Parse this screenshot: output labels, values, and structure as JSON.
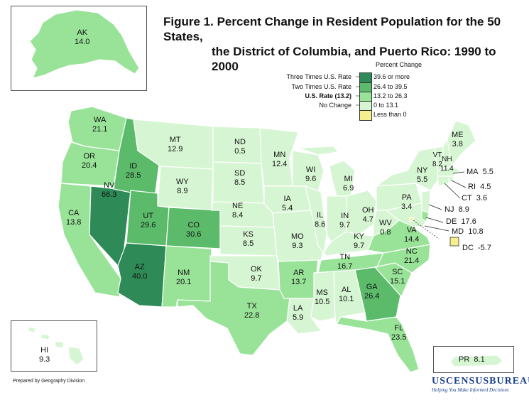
{
  "title": {
    "line1": "Figure 1.  Percent Change in Resident Population for the 50 States,",
    "line2": "the District of Columbia, and Puerto Rico: 1990 to 2000"
  },
  "legend": {
    "heading": "Percent Change",
    "classes": [
      {
        "range": "39.6 or more",
        "color": "#2e8b57",
        "reference": "Three Times U.S. Rate"
      },
      {
        "range": "26.4 to 39.5",
        "color": "#5cbb6a",
        "reference": "Two Times U.S. Rate"
      },
      {
        "range": "13.2 to 26.3",
        "color": "#98e398",
        "reference": "U.S. Rate (13.2)"
      },
      {
        "range": "0 to 13.1",
        "color": "#d6f5d2",
        "reference": "No Change"
      },
      {
        "range": "Less than 0",
        "color": "#f5f08f",
        "reference": ""
      }
    ]
  },
  "states": [
    {
      "abbr": "AK",
      "value": "14.0"
    },
    {
      "abbr": "WA",
      "value": "21.1"
    },
    {
      "abbr": "OR",
      "value": "20.4"
    },
    {
      "abbr": "CA",
      "value": "13.8"
    },
    {
      "abbr": "NV",
      "value": "66.3"
    },
    {
      "abbr": "ID",
      "value": "28.5"
    },
    {
      "abbr": "MT",
      "value": "12.9"
    },
    {
      "abbr": "WY",
      "value": "8.9"
    },
    {
      "abbr": "UT",
      "value": "29.6"
    },
    {
      "abbr": "CO",
      "value": "30.6"
    },
    {
      "abbr": "AZ",
      "value": "40.0"
    },
    {
      "abbr": "NM",
      "value": "20.1"
    },
    {
      "abbr": "ND",
      "value": "0.5"
    },
    {
      "abbr": "SD",
      "value": "8.5"
    },
    {
      "abbr": "NE",
      "value": "8.4"
    },
    {
      "abbr": "KS",
      "value": "8.5"
    },
    {
      "abbr": "OK",
      "value": "9.7"
    },
    {
      "abbr": "TX",
      "value": "22.8"
    },
    {
      "abbr": "MN",
      "value": "12.4"
    },
    {
      "abbr": "IA",
      "value": "5.4"
    },
    {
      "abbr": "MO",
      "value": "9.3"
    },
    {
      "abbr": "AR",
      "value": "13.7"
    },
    {
      "abbr": "LA",
      "value": "5.9"
    },
    {
      "abbr": "WI",
      "value": "9.6"
    },
    {
      "abbr": "IL",
      "value": "8.6"
    },
    {
      "abbr": "MI",
      "value": "6.9"
    },
    {
      "abbr": "IN",
      "value": "9.7"
    },
    {
      "abbr": "OH",
      "value": "4.7"
    },
    {
      "abbr": "KY",
      "value": "9.7"
    },
    {
      "abbr": "TN",
      "value": "16.7"
    },
    {
      "abbr": "MS",
      "value": "10.5"
    },
    {
      "abbr": "AL",
      "value": "10.1"
    },
    {
      "abbr": "GA",
      "value": "26.4"
    },
    {
      "abbr": "FL",
      "value": "23.5"
    },
    {
      "abbr": "SC",
      "value": "15.1"
    },
    {
      "abbr": "NC",
      "value": "21.4"
    },
    {
      "abbr": "VA",
      "value": "14.4"
    },
    {
      "abbr": "WV",
      "value": "0.8"
    },
    {
      "abbr": "PA",
      "value": "3.4"
    },
    {
      "abbr": "NY",
      "value": "5.5"
    },
    {
      "abbr": "VT",
      "value": "8.2"
    },
    {
      "abbr": "NH",
      "value": "11.4"
    },
    {
      "abbr": "ME",
      "value": "3.8"
    },
    {
      "abbr": "MA",
      "value": "5.5"
    },
    {
      "abbr": "RI",
      "value": "4.5"
    },
    {
      "abbr": "CT",
      "value": "3.6"
    },
    {
      "abbr": "NJ",
      "value": "8.9"
    },
    {
      "abbr": "DE",
      "value": "17.6"
    },
    {
      "abbr": "MD",
      "value": "10.8"
    },
    {
      "abbr": "DC",
      "value": "-5.7"
    },
    {
      "abbr": "HI",
      "value": "9.3"
    },
    {
      "abbr": "PR",
      "value": "8.1"
    }
  ],
  "footer": {
    "prepared_by": "Prepared by Geography Division",
    "agency": "USCENSUSBUREAU",
    "tagline": "Helping You Make Informed Decisions"
  }
}
